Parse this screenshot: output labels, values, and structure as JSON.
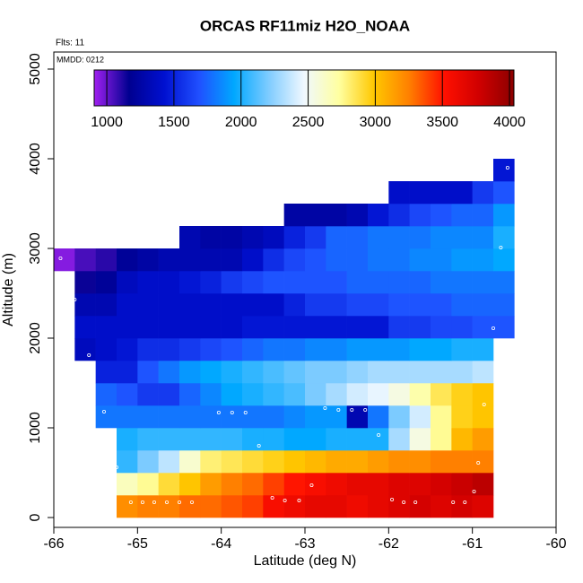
{
  "chart_data": {
    "type": "heatmap",
    "title": "ORCAS RF11miz H2O_NOAA",
    "annotations": [
      "Flts: 11",
      "MMDD: 0212"
    ],
    "x_label": "Latitude (deg N)",
    "y_label": "Altitude (m)",
    "xlim": [
      -66,
      -60
    ],
    "ylim": [
      -110,
      5190
    ],
    "xticks": [
      -66,
      -65,
      -64,
      -63,
      -62,
      -61,
      -60
    ],
    "yticks": [
      0,
      1000,
      2000,
      3000,
      4000,
      5000
    ],
    "x_edges": [
      -66,
      -65.75,
      -65.5,
      -65.25,
      -65,
      -64.75,
      -64.5,
      -64.25,
      -64,
      -63.75,
      -63.5,
      -63.25,
      -63,
      -62.75,
      -62.5,
      -62.25,
      -62,
      -61.75,
      -61.5,
      -61.25,
      -61,
      -60.75,
      -60.5
    ],
    "y_edges": [
      0,
      250,
      500,
      750,
      1000,
      1250,
      1500,
      1750,
      2000,
      2250,
      2500,
      2750,
      3000,
      3250,
      3500,
      3750,
      4000
    ],
    "z": [
      [
        null,
        null,
        null,
        3200,
        3250,
        3250,
        3300,
        3300,
        3350,
        3400,
        3550,
        3600,
        3650,
        3650,
        3600,
        3650,
        3700,
        3750,
        3700,
        3750,
        3700,
        null
      ],
      [
        null,
        null,
        null,
        2650,
        2750,
        2900,
        3000,
        3150,
        3250,
        3300,
        3400,
        3500,
        3550,
        3600,
        3650,
        3650,
        3700,
        3700,
        3750,
        3800,
        3850,
        null
      ],
      [
        null,
        null,
        null,
        2050,
        2200,
        2350,
        2600,
        2800,
        2850,
        2900,
        2950,
        3000,
        3050,
        3100,
        3100,
        3150,
        3200,
        3200,
        3250,
        3250,
        3250,
        null
      ],
      [
        null,
        null,
        null,
        2000,
        2050,
        2050,
        2050,
        2050,
        2050,
        2000,
        2000,
        1950,
        1950,
        2000,
        2000,
        2000,
        2300,
        2550,
        2750,
        3050,
        3150,
        null
      ],
      [
        null,
        null,
        1800,
        1800,
        1800,
        1800,
        1800,
        1800,
        1800,
        1800,
        1800,
        1850,
        1900,
        1900,
        1300,
        1800,
        2200,
        2400,
        2750,
        2950,
        3000,
        null
      ],
      [
        null,
        null,
        1750,
        1700,
        1600,
        1600,
        1750,
        1850,
        1950,
        2000,
        2050,
        2100,
        2200,
        2300,
        2400,
        2450,
        2550,
        2700,
        2850,
        2950,
        3000,
        null
      ],
      [
        null,
        null,
        1500,
        1500,
        1700,
        1800,
        1900,
        1950,
        2000,
        2050,
        2100,
        2150,
        2200,
        2200,
        2250,
        2300,
        2300,
        2300,
        2300,
        2300,
        2350,
        null
      ],
      [
        null,
        1350,
        1400,
        1450,
        1550,
        1550,
        1600,
        1650,
        1700,
        1750,
        1800,
        1800,
        1850,
        1850,
        1900,
        1900,
        1900,
        1950,
        1950,
        2000,
        2000,
        null
      ],
      [
        null,
        1400,
        1400,
        1400,
        1400,
        1400,
        1400,
        1400,
        1400,
        1450,
        1450,
        1450,
        1450,
        1450,
        1450,
        1450,
        1600,
        1600,
        1650,
        1650,
        1700,
        1700
      ],
      [
        null,
        1300,
        1300,
        1400,
        1400,
        1400,
        1400,
        1400,
        1400,
        1400,
        1400,
        1500,
        1600,
        1600,
        1650,
        1650,
        1700,
        1700,
        1700,
        1750,
        1750,
        1750
      ],
      [
        null,
        1150,
        1200,
        1350,
        1400,
        1400,
        1450,
        1500,
        1600,
        1650,
        1700,
        1700,
        1700,
        1700,
        1750,
        1750,
        1750,
        1750,
        1800,
        1800,
        1800,
        1800
      ],
      [
        950,
        1050,
        1100,
        1200,
        1250,
        1300,
        1300,
        1300,
        1300,
        1400,
        1550,
        1650,
        1700,
        1750,
        1750,
        1800,
        1800,
        1850,
        1850,
        1900,
        1900,
        1950
      ],
      [
        null,
        null,
        null,
        null,
        null,
        null,
        1300,
        1250,
        1250,
        1300,
        1350,
        1500,
        1600,
        1750,
        1750,
        1800,
        1800,
        1800,
        1850,
        1850,
        1850,
        2000
      ],
      [
        null,
        null,
        null,
        null,
        null,
        null,
        null,
        null,
        null,
        null,
        null,
        1250,
        1250,
        1250,
        1300,
        1450,
        1550,
        1650,
        1700,
        1750,
        1750,
        1900
      ],
      [
        null,
        null,
        null,
        null,
        null,
        null,
        null,
        null,
        null,
        null,
        null,
        null,
        null,
        null,
        null,
        null,
        1400,
        1400,
        1400,
        1400,
        1600,
        1700
      ],
      [
        null,
        null,
        null,
        null,
        null,
        null,
        null,
        null,
        null,
        null,
        null,
        null,
        null,
        null,
        null,
        null,
        null,
        null,
        null,
        null,
        null,
        1450
      ]
    ],
    "points": {
      "x": [
        -65.08,
        -64.94,
        -64.8,
        -64.65,
        -64.5,
        -64.35,
        -63.39,
        -63.24,
        -63.07,
        -61.96,
        -61.82,
        -61.68,
        -61.23,
        -61.09,
        -65.25,
        -60.98,
        -60.93,
        -62.92,
        -60.86,
        -63.55,
        -62.12,
        -65.4,
        -64.03,
        -63.87,
        -63.71,
        -62.76,
        -62.6,
        -62.44,
        -62.28,
        -65.58,
        -60.75,
        -65.75,
        -65.92,
        -60.66,
        -60.58
      ],
      "y": [
        170,
        170,
        170,
        170,
        170,
        170,
        220,
        190,
        190,
        200,
        170,
        170,
        170,
        170,
        560,
        290,
        610,
        360,
        1260,
        800,
        920,
        1180,
        1170,
        1170,
        1170,
        1220,
        1200,
        1200,
        1200,
        1810,
        2110,
        2430,
        2890,
        3010,
        3900
      ]
    },
    "point_color": "#ffffff",
    "colorbar": {
      "zlim": [
        906,
        4033
      ],
      "ticks": [
        1000,
        1500,
        2000,
        2500,
        3000,
        3500,
        4000
      ],
      "colors": [
        "#a020f0",
        "#000090",
        "#0010d0",
        "#2050ff",
        "#00a8ff",
        "#80ccff",
        "#f0f8ff",
        "#ffffa0",
        "#ffc800",
        "#ff8000",
        "#ff1000",
        "#d00000",
        "#8b0000"
      ]
    }
  }
}
